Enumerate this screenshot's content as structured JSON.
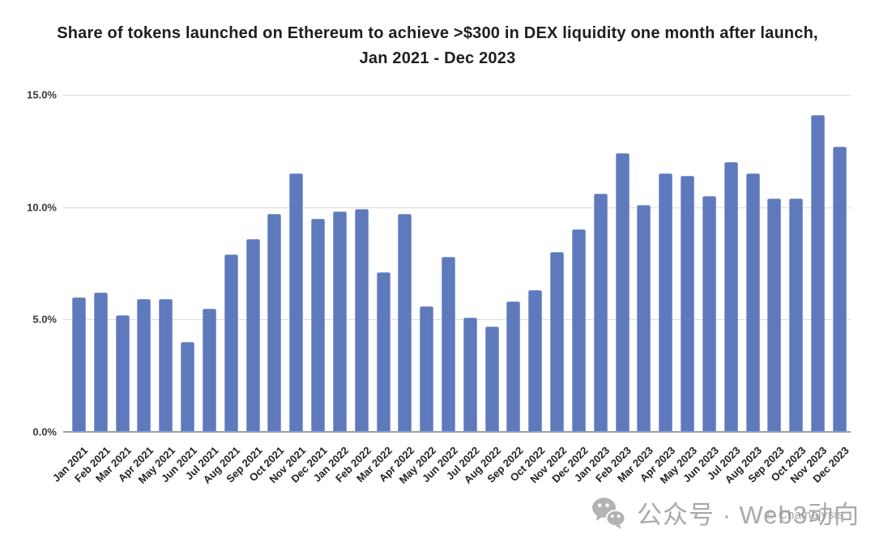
{
  "title": {
    "line1": "Share of tokens launched on Ethereum to achieve >$300 in DEX liquidity one month after launch,",
    "line2": "Jan 2021 - Dec 2023"
  },
  "chart_data": {
    "type": "bar",
    "title": "Share of tokens launched on Ethereum to achieve >$300 in DEX liquidity one month after launch, Jan 2021 - Dec 2023",
    "categories": [
      "Jan 2021",
      "Feb 2021",
      "Mar 2021",
      "Apr 2021",
      "May 2021",
      "Jun 2021",
      "Jul 2021",
      "Aug 2021",
      "Sep 2021",
      "Oct 2021",
      "Nov 2021",
      "Dec 2021",
      "Jan 2022",
      "Feb 2022",
      "Mar 2022",
      "Apr 2022",
      "May 2022",
      "Jun 2022",
      "Jul 2022",
      "Aug 2022",
      "Sep 2022",
      "Oct 2022",
      "Nov 2022",
      "Dec 2022",
      "Jan 2023",
      "Feb 2023",
      "Mar 2023",
      "Apr 2023",
      "May 2023",
      "Jun 2023",
      "Jul 2023",
      "Aug 2023",
      "Sep 2023",
      "Oct 2023",
      "Nov 2023",
      "Dec 2023"
    ],
    "values": [
      6.0,
      6.2,
      5.2,
      5.9,
      5.9,
      4.0,
      5.5,
      7.9,
      8.6,
      9.7,
      11.5,
      9.5,
      9.8,
      9.9,
      7.1,
      9.7,
      5.6,
      7.8,
      5.1,
      4.7,
      5.8,
      6.3,
      8.0,
      9.0,
      10.6,
      12.4,
      10.1,
      11.5,
      11.4,
      10.5,
      12.0,
      11.5,
      10.4,
      10.4,
      14.1,
      12.7
    ],
    "unit": "%",
    "xlabel": "",
    "ylabel": "",
    "ylim": [
      0,
      15
    ],
    "y_ticks": [
      "15.0%",
      "10.0%",
      "5.0%",
      "0.0%"
    ],
    "y_tick_values": [
      15,
      10,
      5,
      0
    ],
    "grid": true,
    "legend_position": "none"
  },
  "footer": {
    "wechat_label": "公众号 · Web3动向",
    "watermark": "© Chainalysis",
    "icon": "wechat-icon"
  },
  "colors": {
    "accent": "#5e7abd",
    "grid": "#d9d9d9",
    "axis_line": "#9e9e9e",
    "title_text": "#1e1e1e",
    "tick_text": "#3a3a3a",
    "footer_text": "#a9a9a9",
    "watermark_text": "#8f8f8f"
  }
}
